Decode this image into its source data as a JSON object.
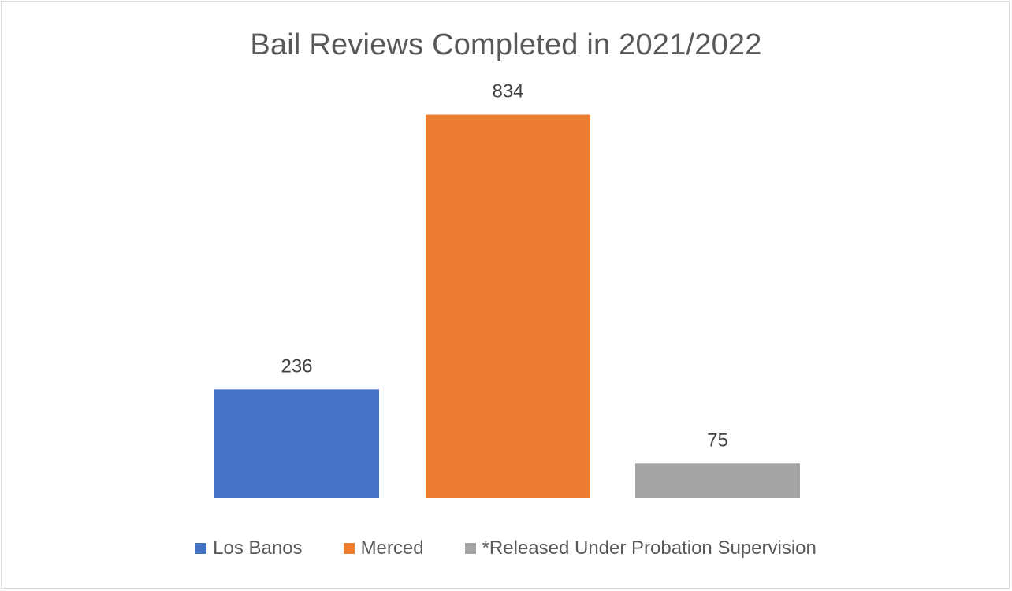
{
  "chart_data": {
    "type": "bar",
    "title": "Bail Reviews Completed in 2021/2022",
    "categories": [
      "Los Banos",
      "Merced",
      "*Released Under Probation Supervision"
    ],
    "values": [
      236,
      834,
      75
    ],
    "data_labels": [
      "236",
      "834",
      "75"
    ],
    "colors": [
      "#4472c4",
      "#ed7d31",
      "#a5a5a5"
    ],
    "ylim": [
      0,
      900
    ],
    "grid": false,
    "legend_position": "bottom",
    "xlabel": "",
    "ylabel": ""
  }
}
